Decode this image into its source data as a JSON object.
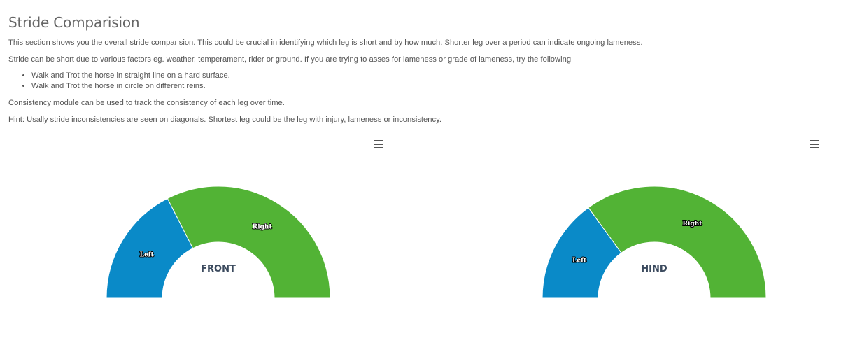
{
  "header": {
    "title": "Stride Comparision"
  },
  "intro": {
    "p1": "This section shows you the overall stride comparision. This could be crucial in identifying which leg is short and by how much. Shorter leg over a period can indicate ongoing lameness.",
    "p2": "Stride can be short due to various factors eg. weather, temperament, rider or ground. If you are trying to asses for lameness or grade of lameness, try the following",
    "tips": [
      "Walk and Trot the horse in straight line on a hard surface.",
      "Walk and Trot the horse in circle on different reins."
    ],
    "p3": "Consistency module can be used to track the consistency of each leg over time.",
    "p4": "Hint: Usally stride inconsistencies are seen on diagonals. Shortest leg could be the leg with injury, lameness or inconsistency."
  },
  "chart_data": [
    {
      "type": "pie",
      "subtype": "semi-circle donut",
      "center_label": "FRONT",
      "categories": [
        "Left",
        "Right"
      ],
      "values": [
        35,
        65
      ],
      "colors": [
        "#0a8ac8",
        "#52b335"
      ]
    },
    {
      "type": "pie",
      "subtype": "semi-circle donut",
      "center_label": "HIND",
      "categories": [
        "Left",
        "Right"
      ],
      "values": [
        30,
        70
      ],
      "colors": [
        "#0a8ac8",
        "#52b335"
      ]
    }
  ],
  "icons": {
    "menu": "hamburger-menu-icon"
  }
}
